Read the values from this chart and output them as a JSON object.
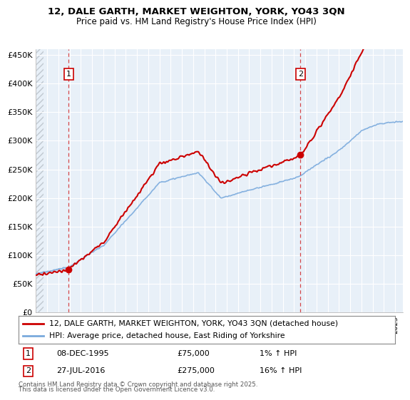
{
  "title1": "12, DALE GARTH, MARKET WEIGHTON, YORK, YO43 3QN",
  "title2": "Price paid vs. HM Land Registry's House Price Index (HPI)",
  "ylim": [
    0,
    460000
  ],
  "yticks": [
    0,
    50000,
    100000,
    150000,
    200000,
    250000,
    300000,
    350000,
    400000,
    450000
  ],
  "ytick_labels": [
    "£0",
    "£50K",
    "£100K",
    "£150K",
    "£200K",
    "£250K",
    "£300K",
    "£350K",
    "£400K",
    "£450K"
  ],
  "t1_year_float": 1995.92,
  "t1_price": 75000,
  "t2_year_float": 2016.56,
  "t2_price": 275000,
  "legend_line1": "12, DALE GARTH, MARKET WEIGHTON, YORK, YO43 3QN (detached house)",
  "legend_line2": "HPI: Average price, detached house, East Riding of Yorkshire",
  "footnote1": "Contains HM Land Registry data © Crown copyright and database right 2025.",
  "footnote2": "This data is licensed under the Open Government Licence v3.0.",
  "price_line_color": "#cc0000",
  "hpi_line_color": "#7aaadd",
  "plot_bg_color": "#e8f0f8",
  "hatch_color": "#c0c8d0",
  "grid_color": "#ffffff",
  "annotation_box_color": "#cc0000",
  "xstart": 1993.0,
  "xend": 2025.7,
  "hatch_xend": 1993.7
}
